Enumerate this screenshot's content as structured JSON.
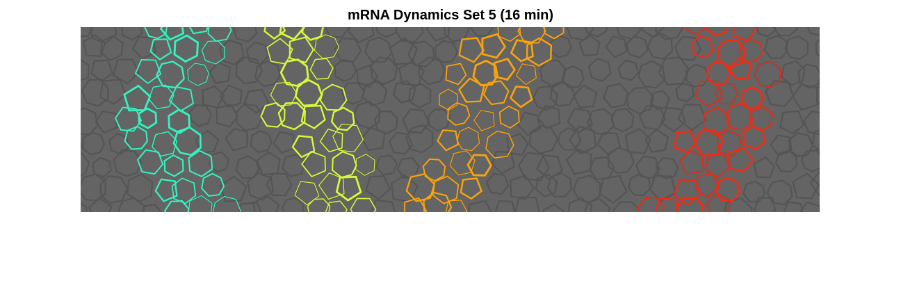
{
  "figure": {
    "title": "mRNA Dynamics Set 5 (16 min)"
  },
  "colors": {
    "background": "#ffffff",
    "tissue_fill": "#646464",
    "tissue_membrane": "#555555",
    "stripes": [
      "#35f2c0",
      "#d4fa3c",
      "#f9a30e",
      "#f42a13"
    ]
  },
  "stripes": [
    {
      "name": "stripe-1",
      "color": "#35f2c0"
    },
    {
      "name": "stripe-2",
      "color": "#d4fa3c"
    },
    {
      "name": "stripe-3",
      "color": "#f9a30e"
    },
    {
      "name": "stripe-4",
      "color": "#f42a13"
    }
  ]
}
